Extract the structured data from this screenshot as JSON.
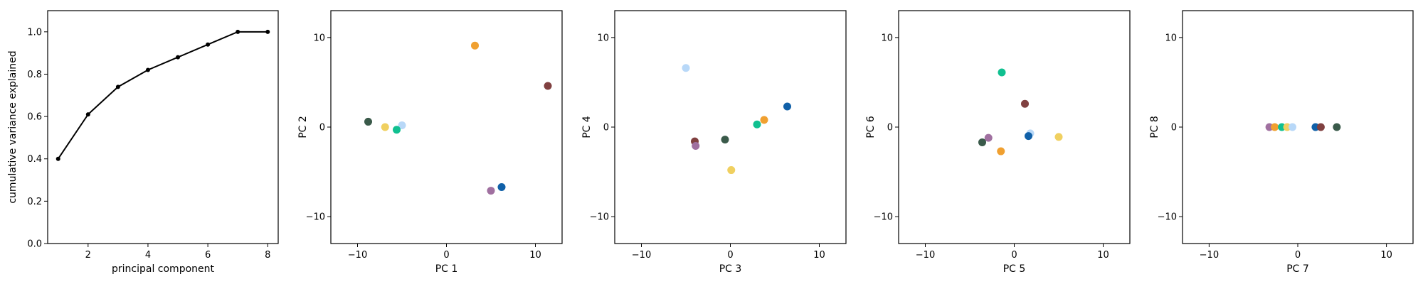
{
  "chart_data": [
    {
      "type": "line",
      "xlabel": "principal component",
      "ylabel": "cumulative variance explained",
      "xlim": [
        0.65,
        8.35
      ],
      "ylim": [
        0.0,
        1.1
      ],
      "xticks": [
        2,
        4,
        6,
        8
      ],
      "yticks": [
        0.0,
        0.2,
        0.4,
        0.6,
        0.8,
        1.0
      ],
      "xtick_labels": [
        "2",
        "4",
        "6",
        "8"
      ],
      "ytick_labels": [
        "0.0",
        "0.2",
        "0.4",
        "0.6",
        "0.8",
        "1.0"
      ],
      "color": "#000000",
      "x": [
        1,
        2,
        3,
        4,
        5,
        6,
        7,
        8
      ],
      "y": [
        0.4,
        0.61,
        0.74,
        0.82,
        0.88,
        0.94,
        1.0,
        1.0
      ]
    },
    {
      "type": "scatter",
      "xlabel": "PC 1",
      "ylabel": "PC 2",
      "xlim": [
        -13,
        13
      ],
      "ylim": [
        -13,
        13
      ],
      "xticks": [
        -10,
        0,
        10
      ],
      "yticks": [
        -10,
        0,
        10
      ],
      "xtick_labels": [
        "−10",
        "0",
        "10"
      ],
      "ytick_labels": [
        "−10",
        "0",
        "10"
      ],
      "points": [
        {
          "x": -8.8,
          "y": 0.6,
          "color": "#3a5a4a"
        },
        {
          "x": -6.9,
          "y": 0.0,
          "color": "#f0d060"
        },
        {
          "x": -5.0,
          "y": 0.2,
          "color": "#b8d8f8"
        },
        {
          "x": -5.6,
          "y": -0.3,
          "color": "#10c090"
        },
        {
          "x": 3.2,
          "y": 9.1,
          "color": "#f0a030"
        },
        {
          "x": 11.4,
          "y": 4.6,
          "color": "#804040"
        },
        {
          "x": 5.0,
          "y": -7.1,
          "color": "#a070a0"
        },
        {
          "x": 6.2,
          "y": -6.7,
          "color": "#1060a8"
        }
      ]
    },
    {
      "type": "scatter",
      "xlabel": "PC 3",
      "ylabel": "PC 4",
      "xlim": [
        -13,
        13
      ],
      "ylim": [
        -13,
        13
      ],
      "xticks": [
        -10,
        0,
        10
      ],
      "yticks": [
        -10,
        0,
        10
      ],
      "xtick_labels": [
        "−10",
        "0",
        "10"
      ],
      "ytick_labels": [
        "−10",
        "0",
        "10"
      ],
      "points": [
        {
          "x": -5.0,
          "y": 6.6,
          "color": "#b8d8f8"
        },
        {
          "x": -4.0,
          "y": -1.6,
          "color": "#804040"
        },
        {
          "x": -3.9,
          "y": -2.1,
          "color": "#a070a0"
        },
        {
          "x": -0.6,
          "y": -1.4,
          "color": "#3a5a4a"
        },
        {
          "x": 0.1,
          "y": -4.8,
          "color": "#f0d060"
        },
        {
          "x": 3.0,
          "y": 0.3,
          "color": "#10c090"
        },
        {
          "x": 3.8,
          "y": 0.8,
          "color": "#f0a030"
        },
        {
          "x": 6.4,
          "y": 2.3,
          "color": "#1060a8"
        }
      ]
    },
    {
      "type": "scatter",
      "xlabel": "PC 5",
      "ylabel": "PC 6",
      "xlim": [
        -13,
        13
      ],
      "ylim": [
        -13,
        13
      ],
      "xticks": [
        -10,
        0,
        10
      ],
      "yticks": [
        -10,
        0,
        10
      ],
      "xtick_labels": [
        "−10",
        "0",
        "10"
      ],
      "ytick_labels": [
        "−10",
        "0",
        "10"
      ],
      "points": [
        {
          "x": -1.4,
          "y": 6.1,
          "color": "#10c090"
        },
        {
          "x": 1.2,
          "y": 2.6,
          "color": "#804040"
        },
        {
          "x": 1.8,
          "y": -0.7,
          "color": "#b8d8f8"
        },
        {
          "x": 1.6,
          "y": -1.0,
          "color": "#1060a8"
        },
        {
          "x": 5.0,
          "y": -1.1,
          "color": "#f0d060"
        },
        {
          "x": -2.9,
          "y": -1.2,
          "color": "#a070a0"
        },
        {
          "x": -3.6,
          "y": -1.7,
          "color": "#3a5a4a"
        },
        {
          "x": -1.5,
          "y": -2.7,
          "color": "#f0a030"
        }
      ]
    },
    {
      "type": "scatter",
      "xlabel": "PC 7",
      "ylabel": "PC 8",
      "xlim": [
        -13,
        13
      ],
      "ylim": [
        -13,
        13
      ],
      "xticks": [
        -10,
        0,
        10
      ],
      "yticks": [
        -10,
        0,
        10
      ],
      "xtick_labels": [
        "−10",
        "0",
        "10"
      ],
      "ytick_labels": [
        "−10",
        "0",
        "10"
      ],
      "points": [
        {
          "x": -3.2,
          "y": 0.0,
          "color": "#a070a0"
        },
        {
          "x": -2.6,
          "y": 0.0,
          "color": "#f0a030"
        },
        {
          "x": -1.8,
          "y": 0.0,
          "color": "#10c090"
        },
        {
          "x": -1.2,
          "y": 0.0,
          "color": "#f0d060"
        },
        {
          "x": -0.6,
          "y": 0.0,
          "color": "#b8d8f8"
        },
        {
          "x": 2.0,
          "y": 0.0,
          "color": "#1060a8"
        },
        {
          "x": 2.6,
          "y": 0.0,
          "color": "#804040"
        },
        {
          "x": 4.4,
          "y": 0.0,
          "color": "#3a5a4a"
        }
      ]
    }
  ]
}
